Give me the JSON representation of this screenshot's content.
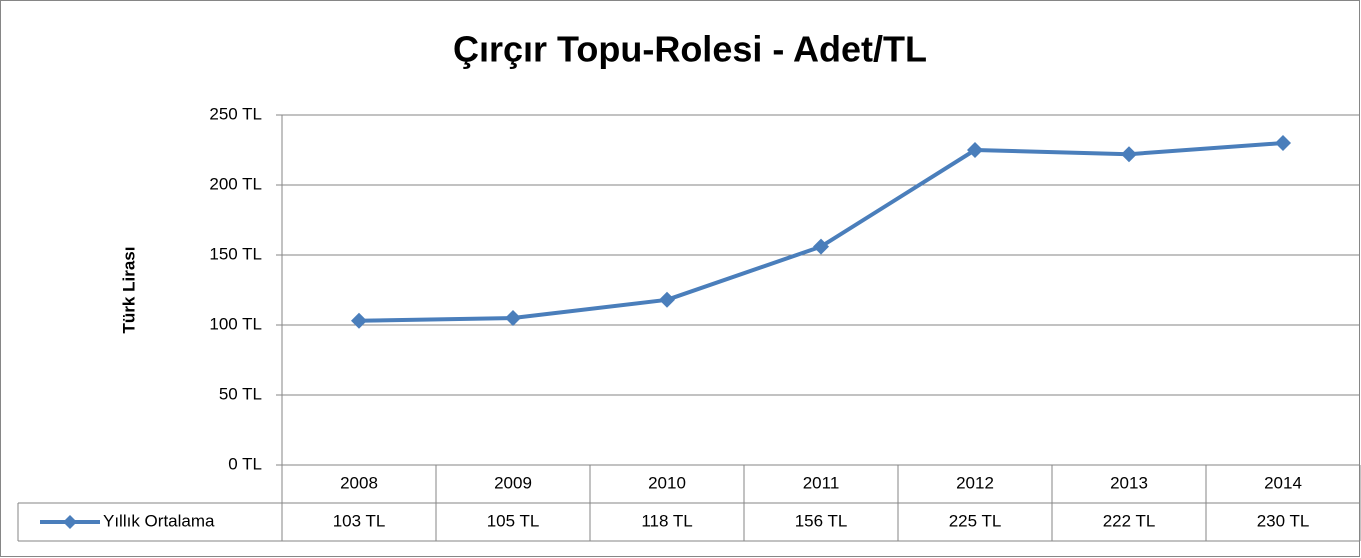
{
  "chart_data": {
    "type": "line",
    "title": "Çırçır Topu-Rolesi - Adet/TL",
    "y_label": "Türk Lirası",
    "categories": [
      "2008",
      "2009",
      "2010",
      "2011",
      "2012",
      "2013",
      "2014"
    ],
    "series": [
      {
        "name": "Yıllık Ortalama",
        "color": "#4a7ebb",
        "values": [
          103,
          105,
          118,
          156,
          225,
          222,
          230
        ],
        "value_labels": [
          "103 TL",
          "105 TL",
          "118 TL",
          "156 TL",
          "225 TL",
          "222 TL",
          "230 TL"
        ]
      }
    ],
    "ylim": [
      0,
      250
    ],
    "yticks": [
      {
        "value": 0,
        "label": "0 TL"
      },
      {
        "value": 50,
        "label": "50 TL"
      },
      {
        "value": 100,
        "label": "100 TL"
      },
      {
        "value": 150,
        "label": "150 TL"
      },
      {
        "value": 200,
        "label": "200 TL"
      },
      {
        "value": 250,
        "label": "250 TL"
      }
    ],
    "grid": true
  }
}
